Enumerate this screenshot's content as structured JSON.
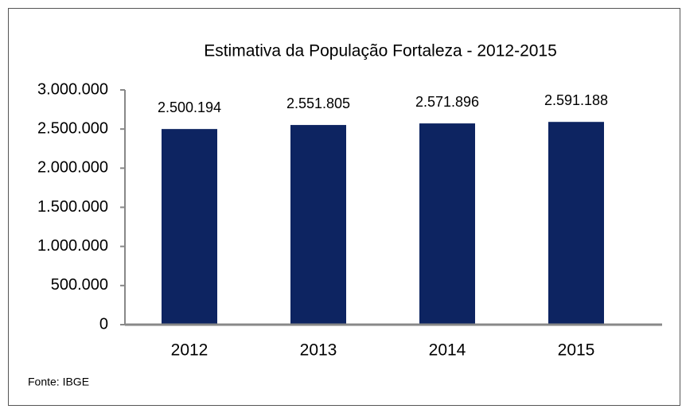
{
  "chart_data": {
    "type": "bar",
    "title": "Estimativa da População Fortaleza - 2012-2015",
    "categories": [
      "2012",
      "2013",
      "2014",
      "2015"
    ],
    "values": [
      2500194,
      2551805,
      2571896,
      2591188
    ],
    "value_labels": [
      "2.500.194",
      "2.551.805",
      "2.571.896",
      "2.591.188"
    ],
    "color": "#0d2461",
    "ylim": [
      0,
      3000000
    ],
    "yticks": [
      0,
      {
        "value": 500000,
        "label": "500.000"
      },
      {
        "value": 1000000,
        "label": "1.000.000"
      },
      {
        "value": 1500000,
        "label": "1.500.000"
      },
      {
        "value": 2000000,
        "label": "2.000.000"
      },
      {
        "value": 2500000,
        "label": "2.500.000"
      },
      {
        "value": 3000000,
        "label": "3.000.000"
      }
    ],
    "grid": false,
    "source": "Fonte: IBGE"
  }
}
